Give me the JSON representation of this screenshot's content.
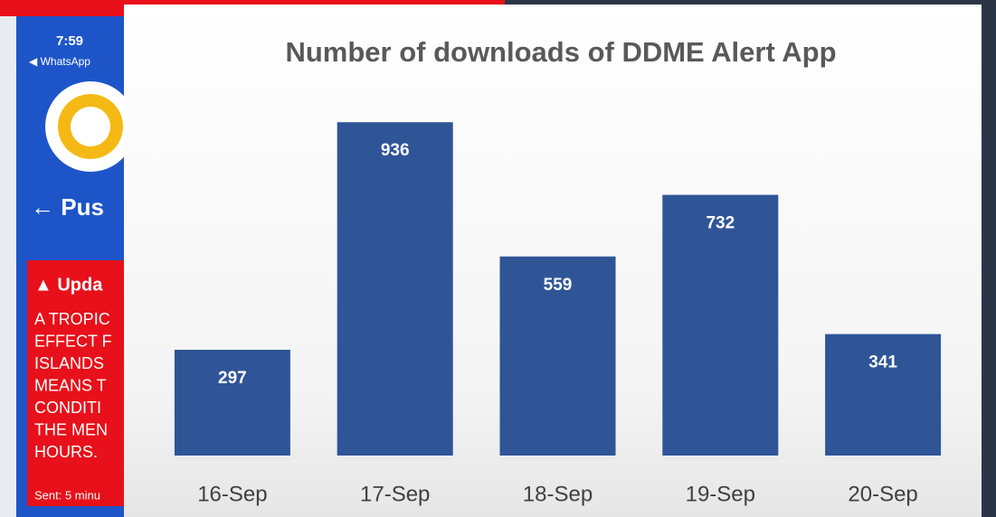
{
  "chart_data": {
    "type": "bar",
    "title": "Number of downloads of DDME Alert App",
    "categories": [
      "16-Sep",
      "17-Sep",
      "18-Sep",
      "19-Sep",
      "20-Sep"
    ],
    "values": [
      297,
      936,
      559,
      732,
      341
    ],
    "color": "#2f5597"
  },
  "background": {
    "time": "7:59",
    "back_app": "◀ WhatsApp",
    "page_title": "← Pus",
    "alert_title": "▲ Upda",
    "alert_lines": [
      "A TROPIC",
      "EFFECT F",
      "ISLANDS",
      "MEANS T",
      "CONDITI",
      "THE MEN",
      "HOURS."
    ],
    "sent": "Sent: 5 minu"
  }
}
